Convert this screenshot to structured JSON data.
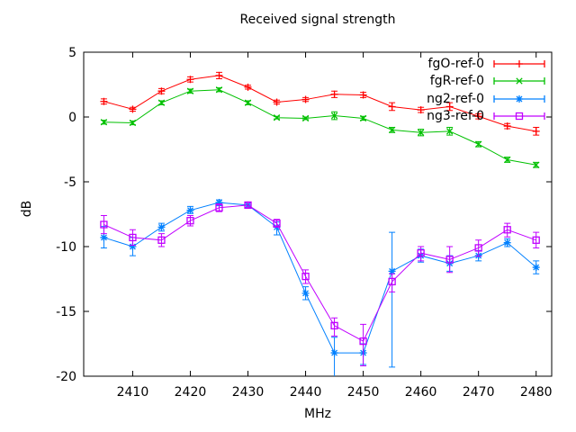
{
  "title": "Received signal strength",
  "chart_data": {
    "type": "line",
    "title": "Received signal strength",
    "xlabel": "MHz",
    "ylabel": "dB",
    "xlim": [
      2401.5,
      2482.7
    ],
    "ylim": [
      -20,
      5
    ],
    "x_tick_labels": [
      2410,
      2420,
      2430,
      2440,
      2450,
      2460,
      2470,
      2480
    ],
    "y_tick_labels": [
      5,
      0,
      -5,
      -10,
      -15,
      -20
    ],
    "grid": false,
    "legend_position": "top-right-inside",
    "error_bars": true,
    "x": [
      2405,
      2410,
      2415,
      2420,
      2425,
      2430,
      2435,
      2440,
      2445,
      2450,
      2455,
      2460,
      2465,
      2470,
      2475,
      2480
    ],
    "series": [
      {
        "name": "fgO-ref-0",
        "color": "#ff0000",
        "marker": "plus",
        "values": [
          1.2,
          0.6,
          2.0,
          2.9,
          3.2,
          2.3,
          1.15,
          1.35,
          1.75,
          1.7,
          0.8,
          0.55,
          0.8,
          0.05,
          -0.7,
          -1.1
        ],
        "err_hi": [
          1.4,
          0.75,
          2.2,
          3.1,
          3.45,
          2.45,
          1.3,
          1.5,
          2.0,
          1.9,
          1.1,
          0.75,
          1.1,
          0.25,
          -0.5,
          -0.8
        ],
        "err_lo": [
          1.0,
          0.45,
          1.8,
          2.7,
          2.95,
          2.15,
          1.0,
          1.2,
          1.5,
          1.5,
          0.5,
          0.35,
          0.5,
          -0.15,
          -0.9,
          -1.4
        ]
      },
      {
        "name": "fgR-ref-0",
        "color": "#00c000",
        "marker": "cross",
        "values": [
          -0.4,
          -0.45,
          1.1,
          2.0,
          2.1,
          1.1,
          -0.05,
          -0.1,
          0.1,
          -0.1,
          -1.0,
          -1.2,
          -1.1,
          -2.1,
          -3.3,
          -3.7
        ],
        "err_hi": [
          -0.25,
          -0.3,
          1.25,
          2.15,
          2.25,
          1.25,
          0.05,
          0.0,
          0.4,
          0.05,
          -0.8,
          -0.95,
          -0.8,
          -1.9,
          -3.1,
          -3.5
        ],
        "err_lo": [
          -0.55,
          -0.6,
          0.95,
          1.85,
          1.95,
          0.95,
          -0.15,
          -0.2,
          -0.2,
          -0.25,
          -1.2,
          -1.45,
          -1.4,
          -2.3,
          -3.5,
          -3.9
        ]
      },
      {
        "name": "ng2-ref-0",
        "color": "#0080ff",
        "marker": "asterisk",
        "values": [
          -9.3,
          -10.0,
          -8.5,
          -7.2,
          -6.6,
          -6.8,
          -8.5,
          -13.6,
          -18.2,
          -18.2,
          -11.9,
          -10.7,
          -11.3,
          -10.7,
          -9.7,
          -11.6
        ],
        "err_hi": [
          -8.45,
          -9.3,
          -8.2,
          -6.9,
          -6.4,
          -6.6,
          -8.1,
          -13.1,
          -17.0,
          -17.5,
          -8.9,
          -10.2,
          -10.7,
          -10.3,
          -9.4,
          -11.1
        ],
        "err_lo": [
          -10.1,
          -10.7,
          -8.8,
          -7.45,
          -6.85,
          -7.0,
          -9.1,
          -14.1,
          -20.3,
          -19.1,
          -19.3,
          -11.2,
          -11.9,
          -11.1,
          -10.0,
          -12.1
        ]
      },
      {
        "name": "ng3-ref-0",
        "color": "#c000ff",
        "marker": "square",
        "values": [
          -8.3,
          -9.3,
          -9.5,
          -8.0,
          -7.0,
          -6.8,
          -8.2,
          -12.3,
          -16.1,
          -17.3,
          -12.7,
          -10.5,
          -11.0,
          -10.1,
          -8.7,
          -9.5
        ],
        "err_hi": [
          -7.6,
          -8.7,
          -9.0,
          -7.6,
          -6.7,
          -6.6,
          -7.9,
          -11.8,
          -15.5,
          -16.0,
          -12.1,
          -10.0,
          -10.0,
          -9.5,
          -8.2,
          -8.9
        ],
        "err_lo": [
          -9.0,
          -9.9,
          -10.0,
          -8.4,
          -7.3,
          -7.0,
          -8.5,
          -12.85,
          -16.9,
          -19.2,
          -13.5,
          -11.1,
          -12.0,
          -10.75,
          -9.25,
          -10.1
        ]
      }
    ]
  }
}
